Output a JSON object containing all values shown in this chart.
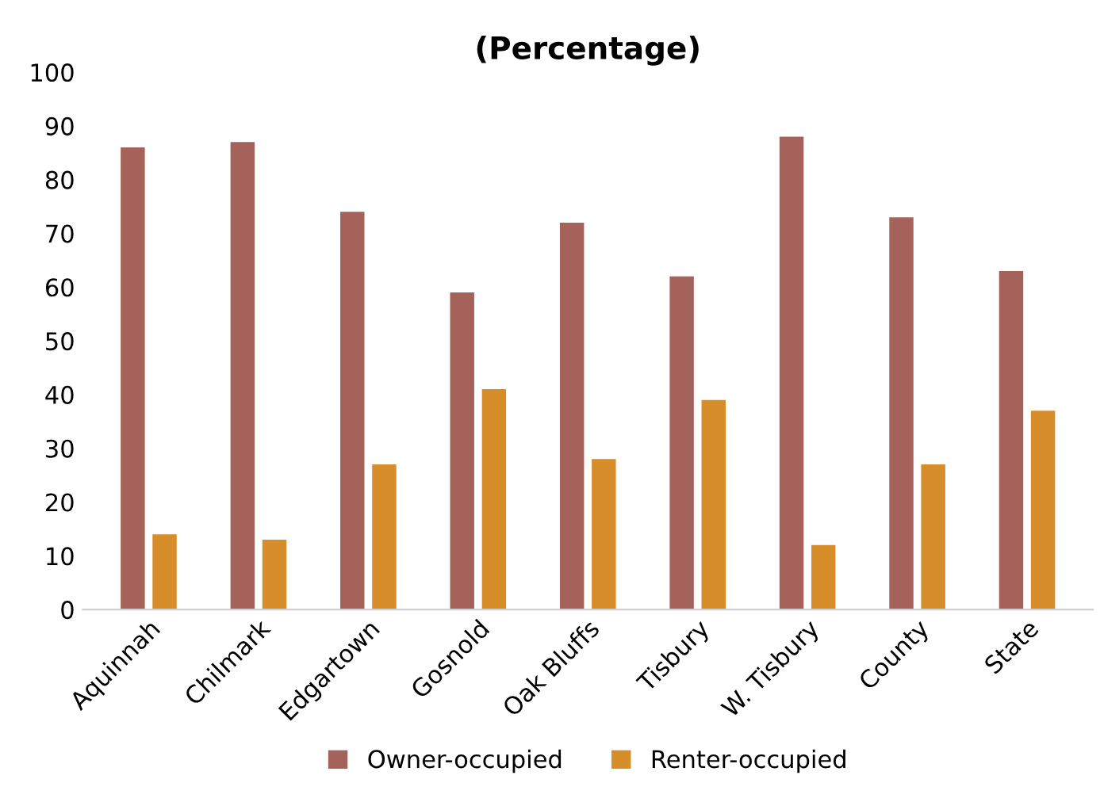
{
  "chart_data": {
    "type": "bar",
    "title": "(Percentage)",
    "categories": [
      "Aquinnah",
      "Chilmark",
      "Edgartown",
      "Gosnold",
      "Oak Bluffs",
      "Tisbury",
      "W. Tisbury",
      "County",
      "State"
    ],
    "series": [
      {
        "name": "Owner-occupied",
        "color": "#a5625a",
        "values": [
          86,
          87,
          74,
          59,
          72,
          62,
          88,
          73,
          63
        ]
      },
      {
        "name": "Renter-occupied",
        "color": "#d68d2a",
        "values": [
          14,
          13,
          27,
          41,
          28,
          39,
          12,
          27,
          37
        ]
      }
    ],
    "ylim": [
      0,
      100
    ],
    "yticks": [
      0,
      10,
      20,
      30,
      40,
      50,
      60,
      70,
      80,
      90,
      100
    ],
    "grid": false,
    "legend": "bottom"
  }
}
